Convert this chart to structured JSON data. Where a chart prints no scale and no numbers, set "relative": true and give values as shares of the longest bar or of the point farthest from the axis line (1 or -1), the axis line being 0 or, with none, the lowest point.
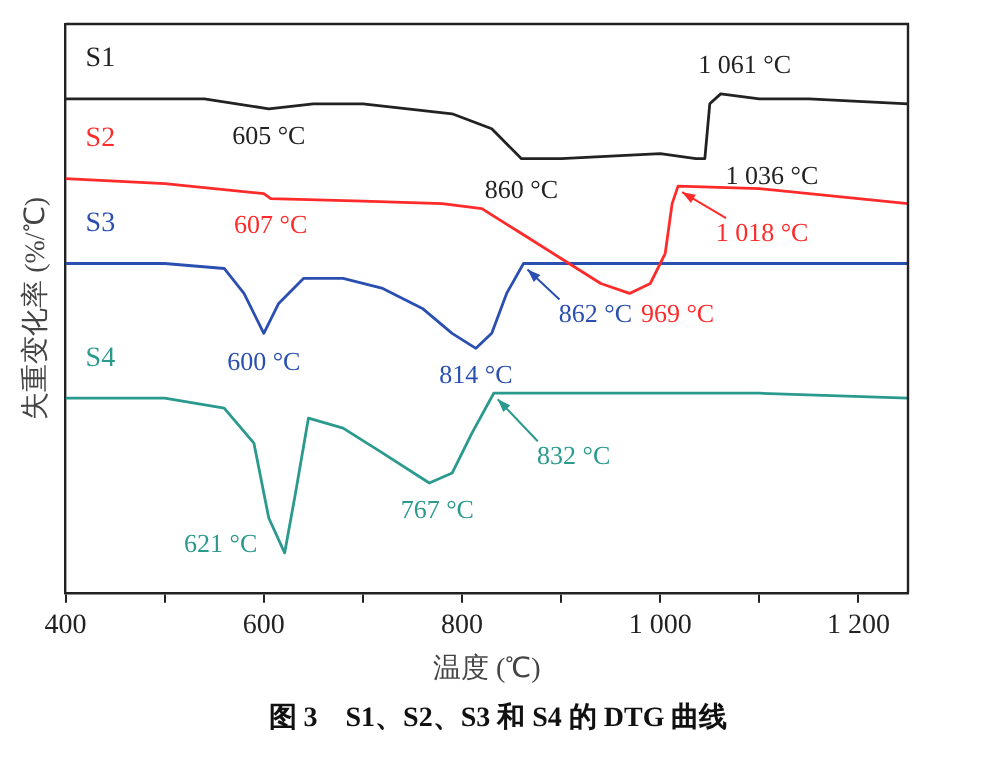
{
  "chart_data": {
    "type": "line",
    "relative": true,
    "xlabel": "温度 (℃)",
    "ylabel": "失重变化率 (%/℃)",
    "xlim": [
      400,
      1250
    ],
    "xticks": [
      400,
      {
        "value": 500,
        "label": null
      },
      600,
      {
        "value": 700,
        "label": null
      },
      800,
      {
        "value": 900,
        "label": null
      },
      {
        "value": 1000,
        "label": "1 000"
      },
      {
        "value": 1100,
        "label": null
      },
      {
        "value": 1200,
        "label": "1 200"
      }
    ],
    "grid": false,
    "legend": false,
    "marker": "none",
    "line_style": "solid",
    "series": [
      {
        "name": "S1",
        "color": "#222222",
        "x": [
          400,
          540,
          605,
          650,
          700,
          790,
          830,
          860,
          900,
          1000,
          1036,
          1045,
          1050,
          1061,
          1100,
          1150,
          1250
        ],
        "values": [
          0.99,
          0.99,
          0.97,
          0.98,
          0.98,
          0.96,
          0.93,
          0.87,
          0.87,
          0.88,
          0.87,
          0.87,
          0.98,
          1.0,
          0.99,
          0.99,
          0.98
        ]
      },
      {
        "name": "S2",
        "color": "#ff2a2a",
        "x": [
          400,
          500,
          600,
          607,
          700,
          780,
          820,
          860,
          900,
          940,
          969,
          990,
          1005,
          1012,
          1018,
          1100,
          1200,
          1250
        ],
        "values": [
          0.83,
          0.82,
          0.8,
          0.79,
          0.785,
          0.78,
          0.77,
          0.72,
          0.67,
          0.62,
          0.6,
          0.62,
          0.68,
          0.78,
          0.815,
          0.81,
          0.79,
          0.78
        ]
      },
      {
        "name": "S3",
        "color": "#2a4fb0",
        "x": [
          400,
          500,
          560,
          580,
          600,
          615,
          640,
          680,
          720,
          760,
          790,
          814,
          830,
          845,
          862,
          900,
          1000,
          1100,
          1250
        ],
        "values": [
          0.66,
          0.66,
          0.65,
          0.6,
          0.52,
          0.58,
          0.63,
          0.63,
          0.61,
          0.57,
          0.52,
          0.49,
          0.52,
          0.6,
          0.66,
          0.66,
          0.66,
          0.66,
          0.66
        ]
      },
      {
        "name": "S4",
        "color": "#2a9a8e",
        "x": [
          400,
          500,
          560,
          590,
          605,
          621,
          632,
          645,
          680,
          720,
          767,
          790,
          810,
          832,
          900,
          1000,
          1100,
          1250
        ],
        "values": [
          0.39,
          0.39,
          0.37,
          0.3,
          0.15,
          0.08,
          0.2,
          0.35,
          0.33,
          0.28,
          0.22,
          0.24,
          0.32,
          0.4,
          0.4,
          0.4,
          0.4,
          0.39
        ]
      }
    ],
    "annotations": [
      {
        "text": "605 °C",
        "x": 605,
        "y": 0.97
      },
      {
        "text": "1 061 °C",
        "x": 1061,
        "y": 1.0
      },
      {
        "text": "860 °C",
        "x": 860,
        "y": 0.87
      },
      {
        "text": "1 036 °C",
        "x": 1036,
        "y": 0.87
      },
      {
        "text": "607 °C",
        "x": 607,
        "y": 0.79
      },
      {
        "text": "1 018 °C",
        "x": 1018,
        "y": 0.815
      },
      {
        "text": "969 °C",
        "x": 969,
        "y": 0.6
      },
      {
        "text": "600 °C",
        "x": 600,
        "y": 0.52
      },
      {
        "text": "814 °C",
        "x": 814,
        "y": 0.49
      },
      {
        "text": "862 °C",
        "x": 862,
        "y": 0.66
      },
      {
        "text": "621 °C",
        "x": 621,
        "y": 0.08
      },
      {
        "text": "767 °C",
        "x": 767,
        "y": 0.22
      },
      {
        "text": "832 °C",
        "x": 832,
        "y": 0.4
      },
      "图 3　S1、S2、S3 和 S4 的 DTG 曲线"
    ]
  }
}
